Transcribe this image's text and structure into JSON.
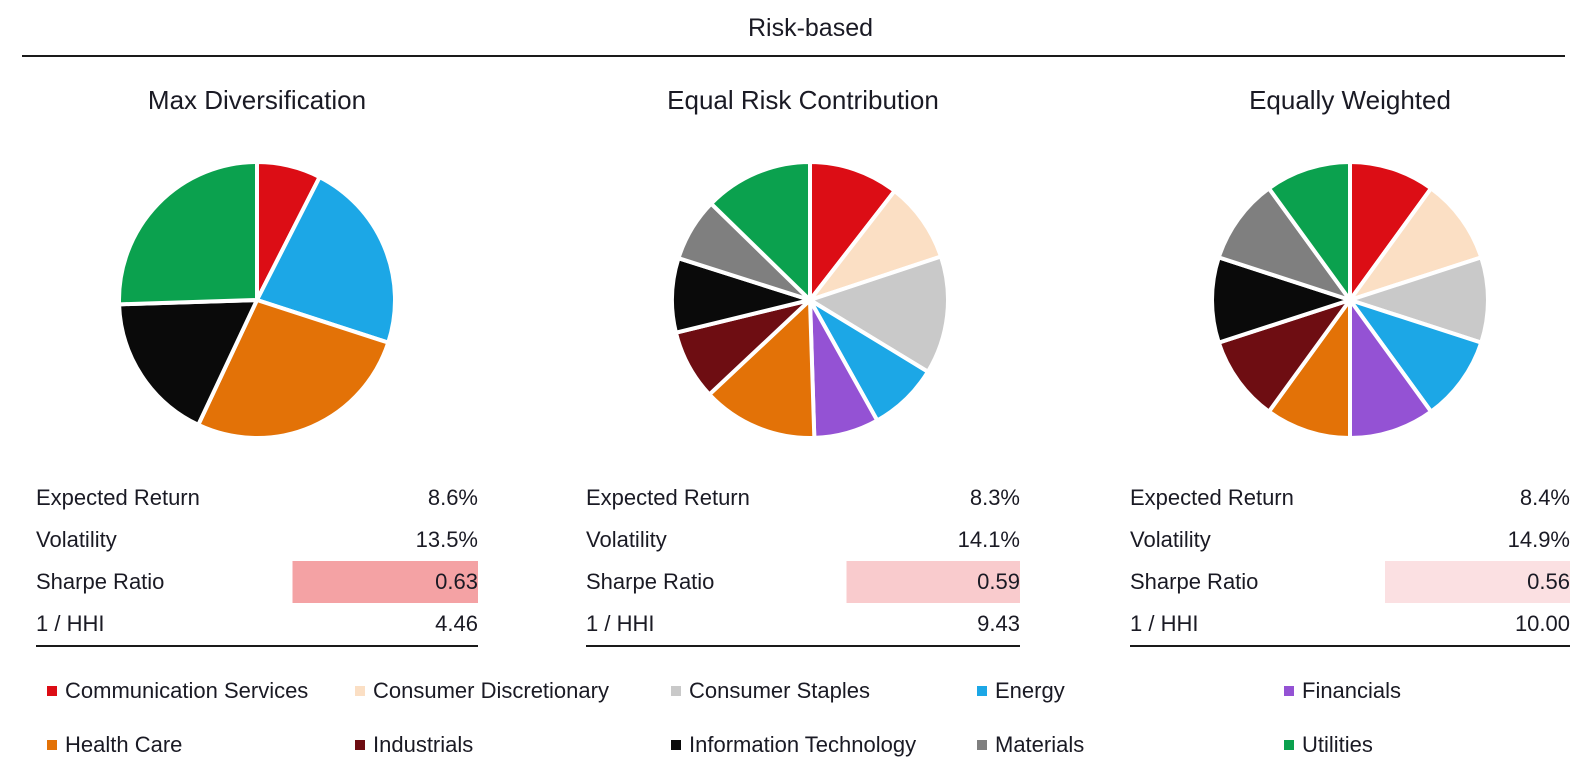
{
  "header": {
    "title": "Risk-based"
  },
  "sectors": [
    {
      "name": "Communication Services",
      "color": "#DC0D15"
    },
    {
      "name": "Consumer Discretionary",
      "color": "#FBDFC4"
    },
    {
      "name": "Consumer Staples",
      "color": "#C9C9C9"
    },
    {
      "name": "Energy",
      "color": "#1CA7E6"
    },
    {
      "name": "Financials",
      "color": "#9452D4"
    },
    {
      "name": "Health Care",
      "color": "#E37207"
    },
    {
      "name": "Industrials",
      "color": "#6E0D12"
    },
    {
      "name": "Information Technology",
      "color": "#0A0A0A"
    },
    {
      "name": "Materials",
      "color": "#7F7F7F"
    },
    {
      "name": "Utilities",
      "color": "#0BA14E"
    }
  ],
  "panels": [
    {
      "title": "Max Diversification",
      "stats": [
        {
          "label": "Expected Return",
          "value": "8.6%"
        },
        {
          "label": "Volatility",
          "value": "13.5%"
        },
        {
          "label": "Sharpe Ratio",
          "value": "0.63",
          "highlighted": true,
          "highlight_color": "#F4A2A4"
        },
        {
          "label": "1 / HHI",
          "value": "4.46"
        }
      ]
    },
    {
      "title": "Equal Risk Contribution",
      "stats": [
        {
          "label": "Expected Return",
          "value": "8.3%"
        },
        {
          "label": "Volatility",
          "value": "14.1%"
        },
        {
          "label": "Sharpe Ratio",
          "value": "0.59",
          "highlighted": true,
          "highlight_color": "#F9CBCD"
        },
        {
          "label": "1 / HHI",
          "value": "9.43"
        }
      ]
    },
    {
      "title": "Equally Weighted",
      "stats": [
        {
          "label": "Expected Return",
          "value": "8.4%"
        },
        {
          "label": "Volatility",
          "value": "14.9%"
        },
        {
          "label": "Sharpe Ratio",
          "value": "0.56",
          "highlighted": true,
          "highlight_color": "#FBE0E2"
        },
        {
          "label": "1 / HHI",
          "value": "10.00"
        }
      ]
    }
  ],
  "chart_data": [
    {
      "type": "pie",
      "title": "Max Diversification",
      "units": "portfolio weight %",
      "start_angle": "12-oclock",
      "direction": "clockwise",
      "categories": [
        "Communication Services",
        "Consumer Discretionary",
        "Consumer Staples",
        "Energy",
        "Financials",
        "Health Care",
        "Industrials",
        "Information Technology",
        "Materials",
        "Utilities"
      ],
      "values": [
        7.5,
        0,
        0,
        22.5,
        0,
        27.0,
        0,
        17.5,
        0,
        25.5
      ],
      "colors": [
        "#DC0D15",
        "#FBDFC4",
        "#C9C9C9",
        "#1CA7E6",
        "#9452D4",
        "#E37207",
        "#6E0D12",
        "#0A0A0A",
        "#7F7F7F",
        "#0BA14E"
      ]
    },
    {
      "type": "pie",
      "title": "Equal Risk Contribution",
      "units": "portfolio weight %",
      "start_angle": "12-oclock",
      "direction": "clockwise",
      "categories": [
        "Communication Services",
        "Consumer Discretionary",
        "Consumer Staples",
        "Energy",
        "Financials",
        "Health Care",
        "Industrials",
        "Information Technology",
        "Materials",
        "Utilities"
      ],
      "values": [
        10.5,
        9.4,
        13.8,
        8.2,
        7.6,
        13.5,
        8.2,
        8.7,
        7.4,
        12.7
      ],
      "colors": [
        "#DC0D15",
        "#FBDFC4",
        "#C9C9C9",
        "#1CA7E6",
        "#9452D4",
        "#E37207",
        "#6E0D12",
        "#0A0A0A",
        "#7F7F7F",
        "#0BA14E"
      ]
    },
    {
      "type": "pie",
      "title": "Equally Weighted",
      "units": "portfolio weight %",
      "start_angle": "12-oclock",
      "direction": "clockwise",
      "categories": [
        "Communication Services",
        "Consumer Discretionary",
        "Consumer Staples",
        "Energy",
        "Financials",
        "Health Care",
        "Industrials",
        "Information Technology",
        "Materials",
        "Utilities"
      ],
      "values": [
        10,
        10,
        10,
        10,
        10,
        10,
        10,
        10,
        10,
        10
      ],
      "colors": [
        "#DC0D15",
        "#FBDFC4",
        "#C9C9C9",
        "#1CA7E6",
        "#9452D4",
        "#E37207",
        "#6E0D12",
        "#0A0A0A",
        "#7F7F7F",
        "#0BA14E"
      ]
    }
  ],
  "legend": {
    "items": [
      {
        "label": "Communication Services",
        "color": "#DC0D15"
      },
      {
        "label": "Consumer Discretionary",
        "color": "#FBDFC4"
      },
      {
        "label": "Consumer Staples",
        "color": "#C9C9C9"
      },
      {
        "label": "Energy",
        "color": "#1CA7E6"
      },
      {
        "label": "Financials",
        "color": "#9452D4"
      },
      {
        "label": "Health Care",
        "color": "#E37207"
      },
      {
        "label": "Industrials",
        "color": "#6E0D12"
      },
      {
        "label": "Information Technology",
        "color": "#0A0A0A"
      },
      {
        "label": "Materials",
        "color": "#7F7F7F"
      },
      {
        "label": "Utilities",
        "color": "#0BA14E"
      }
    ]
  }
}
